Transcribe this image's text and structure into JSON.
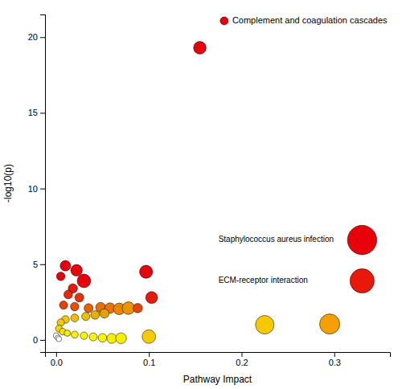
{
  "chart_data": {
    "type": "scatter",
    "xlabel": "Pathway Impact",
    "ylabel": "-log10(p)",
    "xlim": [
      -0.012,
      0.36
    ],
    "ylim": [
      -0.8,
      21.5
    ],
    "xticks": [
      {
        "value": 0.0,
        "label": "0.0"
      },
      0.1,
      0.2,
      0.3
    ],
    "yticks": [
      0,
      5,
      10,
      15,
      20
    ],
    "legend": "upper right",
    "series": [
      {
        "name": "Complement and coagulation cascades",
        "color": "#e8000a",
        "x": [
          0.155,
          0.33,
          0.33,
          0.225,
          0.295,
          0.005,
          0.01,
          0.022,
          0.03,
          0.018,
          0.013,
          0.025,
          0.008,
          0.02,
          0.035,
          0.048,
          0.058,
          0.068,
          0.078,
          0.052,
          0.042,
          0.032,
          0.02,
          0.01,
          0.005,
          0.003,
          0.007,
          0.012,
          0.02,
          0.03,
          0.04,
          0.05,
          0.06,
          0.07,
          0.0,
          0.002,
          0.003,
          0.097,
          0.103,
          0.088,
          0.1
        ],
        "values": [
          19.3,
          6.6,
          3.9,
          1.0,
          1.05,
          4.2,
          4.9,
          4.6,
          3.9,
          3.4,
          3.0,
          2.8,
          2.3,
          2.2,
          2.1,
          2.15,
          2.1,
          2.05,
          2.1,
          1.75,
          1.65,
          1.55,
          1.45,
          1.35,
          1.15,
          0.75,
          0.55,
          0.45,
          0.35,
          0.28,
          0.2,
          0.14,
          0.1,
          0.11,
          0.28,
          0.14,
          0.06,
          4.5,
          2.8,
          2.1,
          0.22
        ],
        "sizes": [
          130,
          700,
          480,
          280,
          330,
          60,
          90,
          110,
          150,
          70,
          60,
          65,
          55,
          58,
          65,
          80,
          90,
          110,
          130,
          70,
          60,
          55,
          50,
          48,
          44,
          40,
          36,
          33,
          40,
          45,
          52,
          60,
          80,
          95,
          28,
          26,
          24,
          140,
          115,
          72,
          150
        ],
        "colors": [
          "#e8000a",
          "#e8000a",
          "#e8180a",
          "#f5c800",
          "#f5a000",
          "#e8000a",
          "#e8000a",
          "#e8000a",
          "#e8000a",
          "#e8180a",
          "#e8280a",
          "#e8300a",
          "#e84000",
          "#e85000",
          "#e86000",
          "#e87000",
          "#e87500",
          "#e88500",
          "#e89500",
          "#e8a000",
          "#e8b000",
          "#e8c000",
          "#f0c000",
          "#f0c800",
          "#f5c800",
          "#f5d800",
          "#fae000",
          "#faee00",
          "#faf000",
          "#faf200",
          "#faf500",
          "#f8f500",
          "#f5f000",
          "#f5ee00",
          "#ffffff",
          "#fefefe",
          "#ffffff",
          "#e8000a",
          "#e8180a",
          "#e84500",
          "#f5cc00"
        ]
      }
    ],
    "annotations": [
      {
        "text": "Staphylococcus aureus infection",
        "x": 0.175,
        "y": 6.6
      },
      {
        "text": "ECM-receptor interaction",
        "x": 0.175,
        "y": 3.9
      }
    ]
  }
}
